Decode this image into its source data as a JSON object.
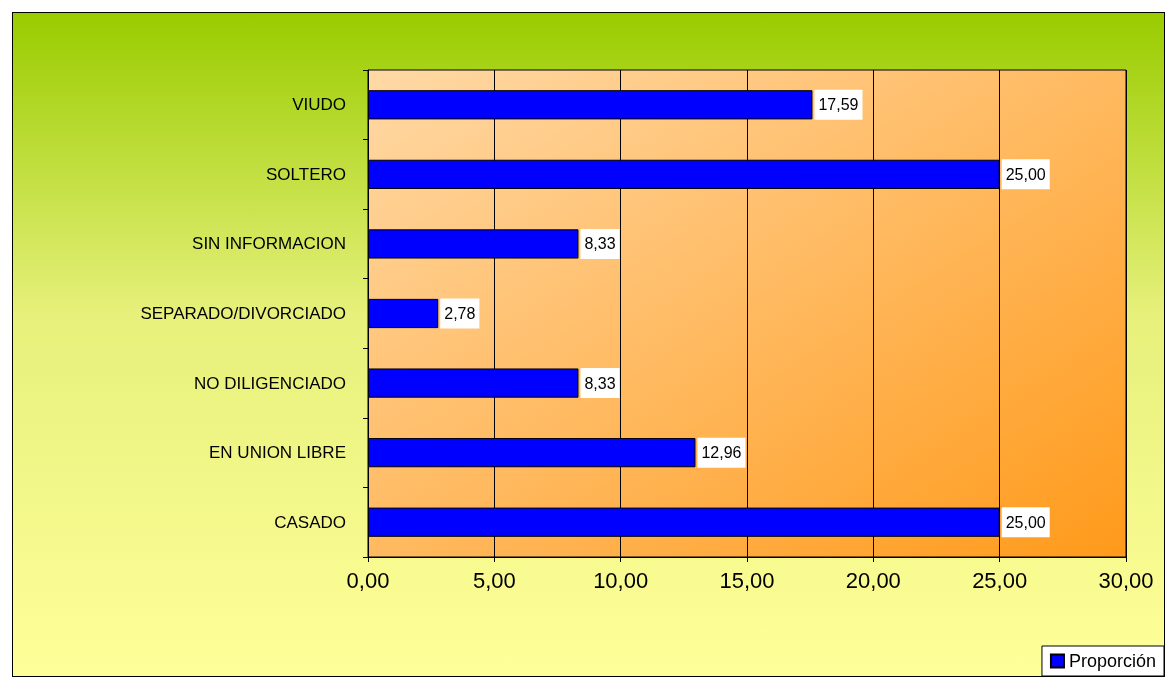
{
  "chart_data": {
    "type": "bar",
    "orientation": "horizontal",
    "categories": [
      "VIUDO",
      "SOLTERO",
      "SIN INFORMACION",
      "SEPARADO/DIVORCIADO",
      "NO DILIGENCIADO",
      "EN UNION LIBRE",
      "CASADO"
    ],
    "series": [
      {
        "name": "Proporción",
        "color": "#0000ff",
        "values": [
          17.59,
          25.0,
          8.33,
          2.78,
          8.33,
          12.96,
          25.0
        ],
        "value_labels": [
          "17,59",
          "25,00",
          "8,33",
          "2,78",
          "8,33",
          "12,96",
          "25,00"
        ]
      }
    ],
    "xlim": [
      0,
      30
    ],
    "xticks": [
      {
        "value": 0,
        "label": "0,00"
      },
      {
        "value": 5,
        "label": "5,00"
      },
      {
        "value": 10,
        "label": "10,00"
      },
      {
        "value": 15,
        "label": "15,00"
      },
      {
        "value": 20,
        "label": "20,00"
      },
      {
        "value": 25,
        "label": "25,00"
      },
      {
        "value": 30,
        "label": "30,00"
      }
    ],
    "grid": "x",
    "legend": "bottom right"
  }
}
